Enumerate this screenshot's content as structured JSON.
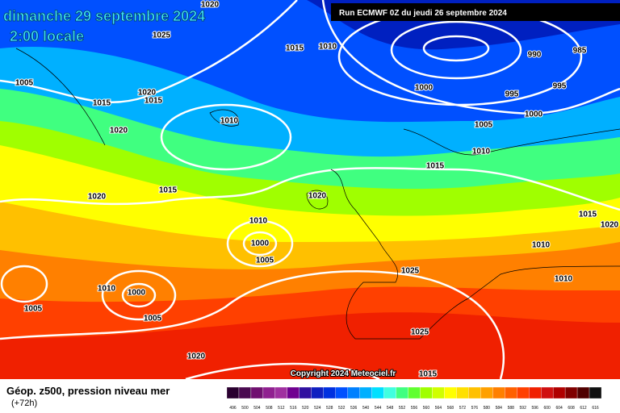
{
  "header": {
    "title": "dimanche 29 septembre 2024",
    "time": "2:00 locale",
    "run": "Run ECMWF 0Z du jeudi 26 septembre 2024"
  },
  "copyright": "Copyright 2024 Meteociel.fr",
  "footer": {
    "title": "Géop. z500, pression niveau mer",
    "lead": "(+72h)"
  },
  "isobar_labels": [
    1020,
    1025,
    1015,
    1010,
    990,
    985,
    1005,
    1000,
    995,
    995,
    1015,
    1020,
    1015,
    1000,
    1010,
    1020,
    1005,
    1010,
    1015,
    1015,
    1020,
    1020,
    1015,
    1010,
    1020,
    1000,
    1010,
    1005,
    1025,
    1010,
    1010,
    1000,
    1005,
    1005,
    1025,
    1020,
    1015
  ],
  "colorbar": {
    "labels": [
      496,
      500,
      504,
      508,
      512,
      516,
      520,
      524,
      528,
      532,
      536,
      540,
      544,
      548,
      552,
      556,
      560,
      564,
      568,
      572,
      576,
      580,
      584,
      588,
      592,
      596,
      600,
      604,
      608,
      612,
      616
    ],
    "colors": [
      "#2a0030",
      "#4a0a50",
      "#701070",
      "#902090",
      "#a030a0",
      "#700090",
      "#3010a0",
      "#1020c0",
      "#0030e0",
      "#0050ff",
      "#0080ff",
      "#00b0ff",
      "#00e0ff",
      "#40ffe0",
      "#40ff80",
      "#60ff30",
      "#a0ff00",
      "#d0ff00",
      "#ffff00",
      "#ffe000",
      "#ffc000",
      "#ffa000",
      "#ff8000",
      "#ff6000",
      "#ff4000",
      "#f02000",
      "#d01010",
      "#b00000",
      "#800000",
      "#500000",
      "#101010"
    ]
  }
}
